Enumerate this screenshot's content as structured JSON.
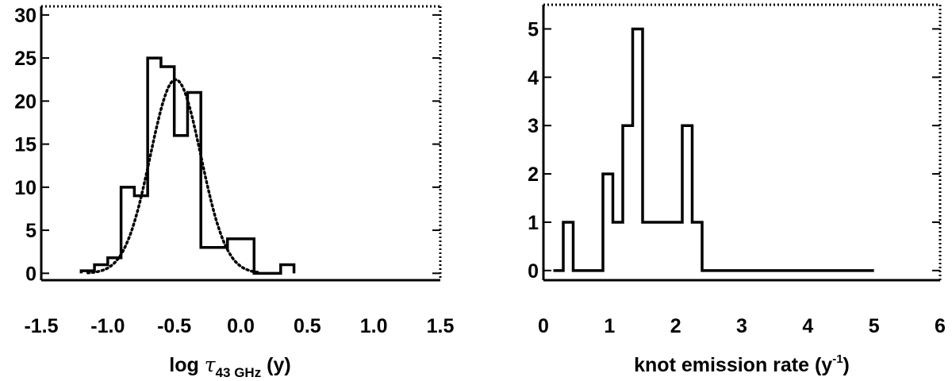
{
  "chart_data": [
    {
      "type": "histogram",
      "xlabel": {
        "prefix": "log ",
        "symbol": "τ",
        "subscript": "43 GHz",
        "suffix": " (y)"
      },
      "xlim": [
        -1.5,
        1.5
      ],
      "ylim": [
        -0.8,
        31
      ],
      "xticks": [
        "-1.5",
        "-1.0",
        "-0.5",
        "0.0",
        "0.5",
        "1.0",
        "1.5"
      ],
      "xtick_values": [
        -1.5,
        -1.0,
        -0.5,
        0.0,
        0.5,
        1.0,
        1.5
      ],
      "yticks": [
        "0",
        "5",
        "10",
        "15",
        "20",
        "25",
        "30"
      ],
      "ytick_values": [
        0,
        5,
        10,
        15,
        20,
        25,
        30
      ],
      "bin_edges": [
        -1.2,
        -1.1,
        -1.0,
        -0.9,
        -0.8,
        -0.7,
        -0.6,
        -0.5,
        -0.4,
        -0.3,
        -0.2,
        -0.1,
        0.0,
        0.1,
        0.2,
        0.3,
        0.4
      ],
      "counts": [
        0.3,
        1,
        1.8,
        10,
        9,
        25,
        24,
        16,
        21,
        3,
        3,
        4,
        4,
        0,
        0,
        1
      ],
      "fit": {
        "style": "dotted",
        "shape": "gaussian",
        "mean": -0.49,
        "sigma": 0.19,
        "amplitude": 22.5,
        "x_range": [
          -1.15,
          0.15
        ]
      },
      "grid": false
    },
    {
      "type": "histogram",
      "xlabel": {
        "prefix": "knot emission rate (y",
        "superscript": "-1",
        "suffix": ")"
      },
      "xlim": [
        0,
        6
      ],
      "ylim": [
        -0.2,
        5.5
      ],
      "xticks": [
        "0",
        "1",
        "2",
        "3",
        "4",
        "5",
        "6"
      ],
      "xtick_values": [
        0,
        1,
        2,
        3,
        4,
        5,
        6
      ],
      "yticks": [
        "0",
        "1",
        "2",
        "3",
        "4",
        "5"
      ],
      "ytick_values": [
        0,
        1,
        2,
        3,
        4,
        5
      ],
      "bin_edges": [
        0.15,
        0.3,
        0.45,
        0.6,
        0.75,
        0.9,
        1.05,
        1.2,
        1.35,
        1.5,
        1.65,
        1.8,
        1.95,
        2.1,
        2.25,
        2.4
      ],
      "counts": [
        0,
        1,
        0,
        0,
        0,
        2,
        1,
        3,
        5,
        1,
        1,
        1,
        1,
        3,
        1
      ],
      "baseline_to": 5.0,
      "grid": false
    }
  ]
}
